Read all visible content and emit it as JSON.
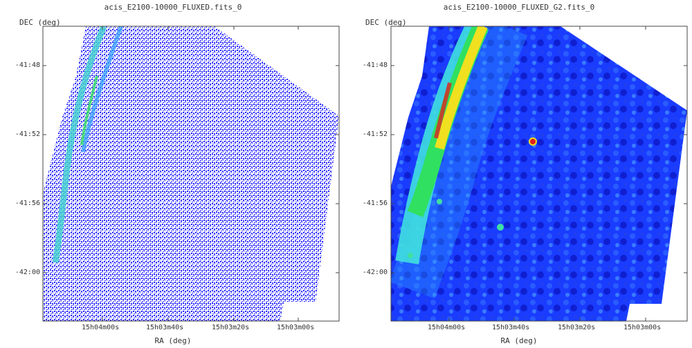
{
  "panels": [
    {
      "title": "acis_E2100-10000_FLUXED.fits_0",
      "y_label": "DEC (deg)",
      "x_label": "RA (deg)",
      "y_ticks": [
        "-41:48",
        "-41:52",
        "-41:56",
        "-42:00"
      ],
      "x_ticks": [
        "15h04m00s",
        "15h03m40s",
        "15h03m20s",
        "15h03m00s"
      ],
      "render": "raw counts — sparse blue pixel speckle with cyan/green arc on left"
    },
    {
      "title": "acis_E2100-10000_FLUXED_G2.fits_0",
      "y_label": "DEC (deg)",
      "x_label": "RA (deg)",
      "y_ticks": [
        "-41:48",
        "-41:52",
        "-41:56",
        "-42:00"
      ],
      "x_ticks": [
        "15h04m00s",
        "15h03m40s",
        "15h03m20s",
        "15h03m00s"
      ],
      "render": "smoothed — blue field with red/yellow/green arc on left and point source"
    }
  ],
  "colors": {
    "background": "#ffffff",
    "frame": "#444444",
    "low": "#1a1aff",
    "mid": "#2fa0ff",
    "cyan": "#3fe0e0",
    "green": "#30e060",
    "yellow": "#f0e020",
    "red": "#e02020"
  }
}
